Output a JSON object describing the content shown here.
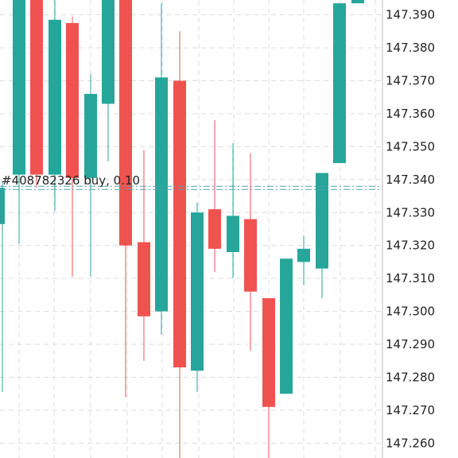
{
  "chart_data": {
    "type": "candlestick",
    "ylim": [
      147.2555,
      147.3945
    ],
    "y_ticks": [
      147.39,
      147.38,
      147.37,
      147.36,
      147.35,
      147.34,
      147.33,
      147.32,
      147.31,
      147.3,
      147.29,
      147.28,
      147.27,
      147.26
    ],
    "y_tick_labels": [
      "147.390",
      "147.380",
      "147.370",
      "147.360",
      "147.350",
      "147.340",
      "147.330",
      "147.320",
      "147.310",
      "147.300",
      "147.290",
      "147.280",
      "147.270",
      "147.260"
    ],
    "grid": true,
    "colors": {
      "up": "#26a69a",
      "down": "#ef5350",
      "grid": "#dcdcdc",
      "order_line": "#4fa3b0"
    },
    "order_line": {
      "price": 147.3375,
      "label": "#408782326 buy, 0.10"
    },
    "candles": [
      {
        "dir": "up",
        "open": 147.3265,
        "close": 147.3375,
        "high": 147.3395,
        "low": 147.2755
      },
      {
        "dir": "up",
        "open": 147.3415,
        "close": 147.3995,
        "high": 147.3995,
        "low": 147.3205
      },
      {
        "dir": "down",
        "open": 147.3995,
        "close": 147.3415,
        "high": 147.3995,
        "low": 147.3375
      },
      {
        "dir": "up",
        "open": 147.3415,
        "close": 147.3885,
        "high": 147.3945,
        "low": 147.3305
      },
      {
        "dir": "down",
        "open": 147.3875,
        "close": 147.3405,
        "high": 147.3895,
        "low": 147.3105
      },
      {
        "dir": "up",
        "open": 147.3405,
        "close": 147.366,
        "high": 147.372,
        "low": 147.3105
      },
      {
        "dir": "up",
        "open": 147.363,
        "close": 147.3995,
        "high": 147.3995,
        "low": 147.3455
      },
      {
        "dir": "down",
        "open": 147.3995,
        "close": 147.32,
        "high": 147.3995,
        "low": 147.274
      },
      {
        "dir": "down",
        "open": 147.321,
        "close": 147.2985,
        "high": 147.349,
        "low": 147.285
      },
      {
        "dir": "up",
        "open": 147.3,
        "close": 147.371,
        "high": 147.3935,
        "low": 147.293
      },
      {
        "dir": "down",
        "open": 147.37,
        "close": 147.283,
        "high": 147.385,
        "low": 147.2555
      },
      {
        "dir": "up",
        "open": 147.282,
        "close": 147.33,
        "high": 147.333,
        "low": 147.2755
      },
      {
        "dir": "down",
        "open": 147.331,
        "close": 147.319,
        "high": 147.358,
        "low": 147.312
      },
      {
        "dir": "up",
        "open": 147.318,
        "close": 147.329,
        "high": 147.351,
        "low": 147.31
      },
      {
        "dir": "down",
        "open": 147.328,
        "close": 147.306,
        "high": 147.348,
        "low": 147.288
      },
      {
        "dir": "down",
        "open": 147.304,
        "close": 147.271,
        "high": 147.304,
        "low": 147.2555
      },
      {
        "dir": "up",
        "open": 147.275,
        "close": 147.316,
        "high": 147.316,
        "low": 147.275
      },
      {
        "dir": "up",
        "open": 147.315,
        "close": 147.319,
        "high": 147.323,
        "low": 147.308
      },
      {
        "dir": "up",
        "open": 147.313,
        "close": 147.342,
        "high": 147.342,
        "low": 147.304
      },
      {
        "dir": "up",
        "open": 147.345,
        "close": 147.3935,
        "high": 147.3935,
        "low": 147.345
      },
      {
        "dir": "up",
        "open": 147.3935,
        "close": 147.395,
        "high": 147.3955,
        "low": 147.3935
      }
    ]
  }
}
